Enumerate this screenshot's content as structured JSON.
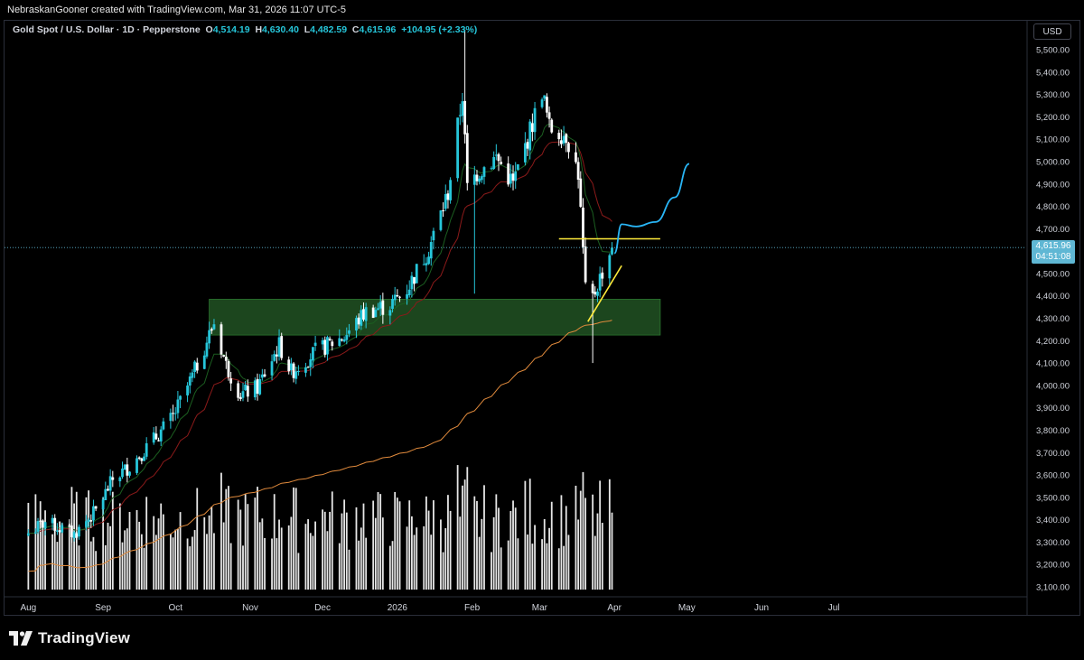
{
  "header": {
    "attribution": "NebraskanGooner created with TradingView.com, Mar 31, 2026 11:07 UTC-5"
  },
  "legend": {
    "symbol": "Gold Spot / U.S. Dollar · 1D · Pepperstone",
    "o_label": "O",
    "o_value": "4,514.19",
    "h_label": "H",
    "h_value": "4,630.40",
    "l_label": "L",
    "l_value": "4,482.59",
    "c_label": "C",
    "c_value": "4,615.96",
    "change": "+104.95 (+2.33%)"
  },
  "currency_button": "USD",
  "price_tag": {
    "price": "4,615.96",
    "countdown": "04:51:08"
  },
  "footer": {
    "brand": "TradingView"
  },
  "colors": {
    "up_candle": "#26c6da",
    "down_candle": "#ffffff",
    "ema_fast": "#1b5e20",
    "ema_mid": "#8b1a1a",
    "ma_slow": "#e08a3c",
    "zone_fill": "#1e4a20",
    "resistance_line": "#ffeb3b",
    "projection": "#29b6f6",
    "volume": "#ffffff"
  },
  "chart_data": {
    "type": "candlestick",
    "symbol": "XAUUSD",
    "timeframe": "1D",
    "y_ticks": [
      3100,
      3200,
      3300,
      3400,
      3500,
      3600,
      3700,
      3800,
      3900,
      4000,
      4100,
      4200,
      4300,
      4400,
      4500,
      4600,
      4700,
      4800,
      4900,
      5000,
      5100,
      5200,
      5300,
      5400,
      5500
    ],
    "y_tick_labels": [
      "3,100.00",
      "3,200.00",
      "3,300.00",
      "3,400.00",
      "3,500.00",
      "3,600.00",
      "3,700.00",
      "3,800.00",
      "3,900.00",
      "4,000.00",
      "4,100.00",
      "4,200.00",
      "4,300.00",
      "4,400.00",
      "4,500.00",
      "4,600.00",
      "4,700.00",
      "4,800.00",
      "4,900.00",
      "5,000.00",
      "5,100.00",
      "5,200.00",
      "5,300.00",
      "5,400.00",
      "5,500.00"
    ],
    "x_labels": [
      "Aug",
      "Sep",
      "Oct",
      "Nov",
      "Dec",
      "2026",
      "Feb",
      "Mar",
      "Apr",
      "May",
      "Jun",
      "Jul"
    ],
    "x_label_dates": [
      "2025-08-01",
      "2025-09-01",
      "2025-10-01",
      "2025-11-01",
      "2025-12-01",
      "2026-01-01",
      "2026-02-01",
      "2026-03-01",
      "2026-04-01",
      "2026-05-01",
      "2026-06-01",
      "2026-07-01"
    ],
    "close_anchors": [
      [
        "2025-08-01",
        3340
      ],
      [
        "2025-08-08",
        3390
      ],
      [
        "2025-08-20",
        3335
      ],
      [
        "2025-08-29",
        3440
      ],
      [
        "2025-09-05",
        3580
      ],
      [
        "2025-09-12",
        3640
      ],
      [
        "2025-09-23",
        3770
      ],
      [
        "2025-09-30",
        3860
      ],
      [
        "2025-10-08",
        4040
      ],
      [
        "2025-10-17",
        4280
      ],
      [
        "2025-10-22",
        4090
      ],
      [
        "2025-10-28",
        3960
      ],
      [
        "2025-11-04",
        3990
      ],
      [
        "2025-11-13",
        4180
      ],
      [
        "2025-11-18",
        4060
      ],
      [
        "2025-11-28",
        4150
      ],
      [
        "2025-12-10",
        4220
      ],
      [
        "2025-12-19",
        4330
      ],
      [
        "2025-12-29",
        4360
      ],
      [
        "2026-01-05",
        4430
      ],
      [
        "2026-01-14",
        4610
      ],
      [
        "2026-01-22",
        4860
      ],
      [
        "2026-01-28",
        5300
      ],
      [
        "2026-01-30",
        4880
      ],
      [
        "2026-02-03",
        4950
      ],
      [
        "2026-02-11",
        5020
      ],
      [
        "2026-02-18",
        4900
      ],
      [
        "2026-02-26",
        5170
      ],
      [
        "2026-03-02",
        5320
      ],
      [
        "2026-03-05",
        5150
      ],
      [
        "2026-03-12",
        5120
      ],
      [
        "2026-03-17",
        4950
      ],
      [
        "2026-03-20",
        4420
      ],
      [
        "2026-03-23",
        4390
      ],
      [
        "2026-03-27",
        4510
      ],
      [
        "2026-03-31",
        4615.96
      ]
    ],
    "last_close": 4615.96,
    "demand_zone": {
      "y_min": 4225,
      "y_max": 4385,
      "x_start": "2025-10-15",
      "x_end": "2026-04-20"
    },
    "resistance_level": {
      "y": 4655,
      "x_start": "2026-03-09",
      "x_end": "2026-04-20"
    },
    "trendline": {
      "x1": "2026-03-21",
      "y1": 4285,
      "x2": "2026-04-04",
      "y2": 4535
    },
    "projection": [
      [
        "2026-04-01",
        4590
      ],
      [
        "2026-04-04",
        4720
      ],
      [
        "2026-04-10",
        4710
      ],
      [
        "2026-04-18",
        4730
      ],
      [
        "2026-04-26",
        4840
      ],
      [
        "2026-05-02",
        4990
      ]
    ]
  }
}
